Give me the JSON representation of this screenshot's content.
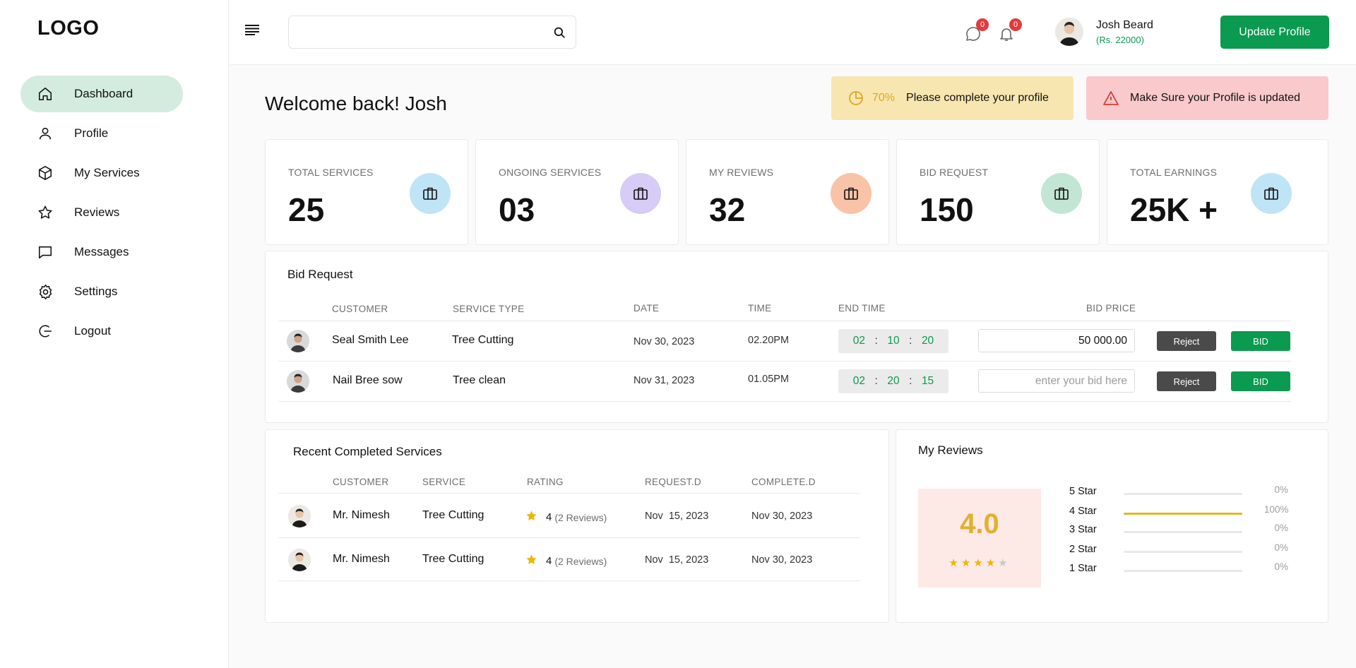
{
  "sidebar": {
    "logo": "LOGO",
    "items": [
      {
        "label": "Dashboard",
        "icon": "home-icon",
        "active": true
      },
      {
        "label": "Profile",
        "icon": "user-icon"
      },
      {
        "label": "My Services",
        "icon": "box-icon"
      },
      {
        "label": "Reviews",
        "icon": "star-icon"
      },
      {
        "label": "Messages",
        "icon": "chat-icon"
      },
      {
        "label": "Settings",
        "icon": "gear-icon"
      },
      {
        "label": "Logout",
        "icon": "logout-icon"
      }
    ]
  },
  "header": {
    "search": {
      "placeholder": "",
      "value": ""
    },
    "messages_count": "0",
    "notifications_count": "0",
    "user_name": "Josh Beard",
    "user_balance": "(Rs. 22000)",
    "update_button": "Update Profile"
  },
  "welcome": "Welcome back! Josh",
  "alerts": {
    "profile_percent": "70%",
    "profile_text": "Please complete your profile",
    "update_text": "Make Sure your Profile is updated"
  },
  "stats": [
    {
      "label": "TOTAL SERVICES",
      "value": "25",
      "color": "#bfe4f6"
    },
    {
      "label": "ONGOING SERVICES",
      "value": "03",
      "color": "#d6ccf7"
    },
    {
      "label": "MY REVIEWS",
      "value": "32",
      "color": "#f9c3a8"
    },
    {
      "label": "BID REQUEST",
      "value": "150",
      "color": "#c2e6d3"
    },
    {
      "label": "TOTAL EARNINGS",
      "value": "25K +",
      "color": "#bfe4f6"
    }
  ],
  "bid_request": {
    "title": "Bid Request",
    "columns": [
      "CUSTOMER",
      "SERVICE TYPE",
      "DATE",
      "TIME",
      "END TIME",
      "BID PRICE"
    ],
    "rows": [
      {
        "customer": "Seal Smith Lee",
        "service": "Tree Cutting",
        "date": "Nov 30, 2023",
        "time": "02.20PM",
        "end": [
          "02",
          "10",
          "20"
        ],
        "bid_value": "50 000.00",
        "bid_placeholder": "",
        "reject": "Reject",
        "bid": "BID"
      },
      {
        "customer": "Nail Bree sow",
        "service": "Tree clean",
        "date": "Nov 31, 2023",
        "time": "01.05PM",
        "end": [
          "02",
          "20",
          "15"
        ],
        "bid_value": "",
        "bid_placeholder": "enter your bid here",
        "reject": "Reject",
        "bid": "BID"
      }
    ],
    "separator": ":"
  },
  "recent": {
    "title": "Recent Completed Services",
    "columns": [
      "CUSTOMER",
      "SERVICE",
      "RATING",
      "REQUEST.D",
      "COMPLETE.D"
    ],
    "rows": [
      {
        "customer": "Mr. Nimesh",
        "service": "Tree Cutting",
        "rating": "4",
        "reviews": "(2 Reviews)",
        "request": "Nov  15, 2023",
        "complete": "Nov 30, 2023"
      },
      {
        "customer": "Mr. Nimesh",
        "service": "Tree Cutting",
        "rating": "4",
        "reviews": "(2 Reviews)",
        "request": "Nov  15, 2023",
        "complete": "Nov 30, 2023"
      }
    ]
  },
  "reviews": {
    "title": "My Reviews",
    "score": "4.0",
    "stars_filled": 4,
    "stars_total": 5,
    "breakdown": [
      {
        "label": "5 Star",
        "pct": "0%",
        "fraction": 0
      },
      {
        "label": "4 Star",
        "pct": "100%",
        "fraction": 1
      },
      {
        "label": "3 Star",
        "pct": "0%",
        "fraction": 0
      },
      {
        "label": "2 Star",
        "pct": "0%",
        "fraction": 0
      },
      {
        "label": "1 Star",
        "pct": "0%",
        "fraction": 0
      }
    ]
  }
}
